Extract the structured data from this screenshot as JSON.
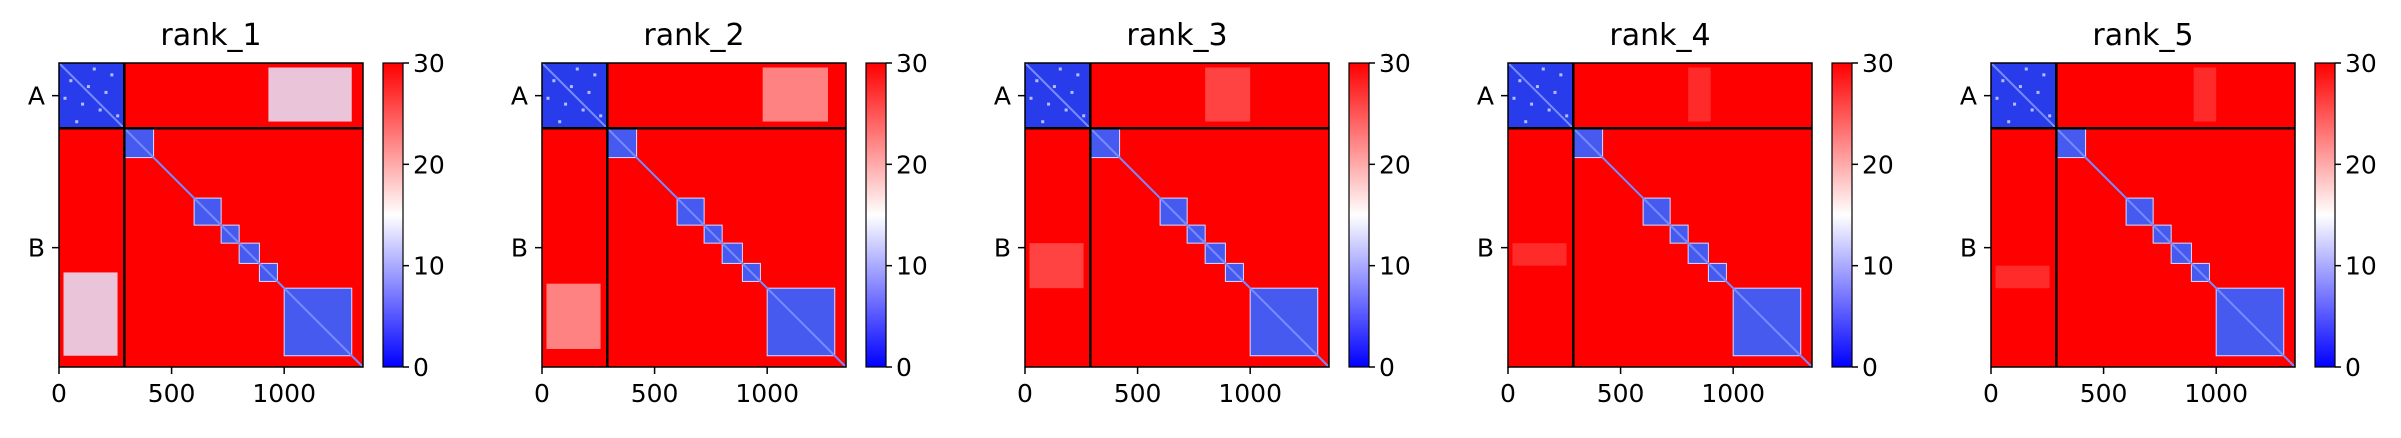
{
  "chart_data": [
    {
      "type": "heatmap",
      "title": "rank_1",
      "xticks": [
        0,
        500,
        1000
      ],
      "yticks": [
        "A",
        "B"
      ],
      "xlim": [
        0,
        1350
      ],
      "chain_break": 290,
      "colorbar": {
        "ticks": [
          0,
          10,
          20,
          30
        ],
        "range": [
          0,
          30
        ]
      },
      "ab_offdiag_blocks": [
        {
          "x": [
            930,
            1300
          ],
          "level": 0.45
        }
      ],
      "ba_offdiag_blocks": [
        {
          "y": [
            930,
            1300
          ],
          "level": 0.45
        }
      ],
      "diagonal_domains": [
        [
          290,
          420
        ],
        [
          600,
          720
        ],
        [
          720,
          800
        ],
        [
          800,
          890
        ],
        [
          890,
          970
        ],
        [
          1000,
          1300
        ]
      ]
    },
    {
      "type": "heatmap",
      "title": "rank_2",
      "xticks": [
        0,
        500,
        1000
      ],
      "yticks": [
        "A",
        "B"
      ],
      "xlim": [
        0,
        1350
      ],
      "chain_break": 290,
      "colorbar": {
        "ticks": [
          0,
          10,
          20,
          30
        ],
        "range": [
          0,
          30
        ]
      },
      "ab_offdiag_blocks": [
        {
          "x": [
            980,
            1270
          ],
          "level": 0.7
        }
      ],
      "ba_offdiag_blocks": [
        {
          "y": [
            980,
            1270
          ],
          "level": 0.7
        }
      ],
      "diagonal_domains": [
        [
          290,
          420
        ],
        [
          600,
          720
        ],
        [
          720,
          800
        ],
        [
          800,
          890
        ],
        [
          890,
          970
        ],
        [
          1000,
          1300
        ]
      ]
    },
    {
      "type": "heatmap",
      "title": "rank_3",
      "xticks": [
        0,
        500,
        1000
      ],
      "yticks": [
        "A",
        "B"
      ],
      "xlim": [
        0,
        1350
      ],
      "chain_break": 290,
      "colorbar": {
        "ticks": [
          0,
          10,
          20,
          30
        ],
        "range": [
          0,
          30
        ]
      },
      "ab_offdiag_blocks": [
        {
          "x": [
            800,
            1000
          ],
          "level": 0.85
        }
      ],
      "ba_offdiag_blocks": [
        {
          "y": [
            800,
            1000
          ],
          "level": 0.85
        }
      ],
      "diagonal_domains": [
        [
          290,
          420
        ],
        [
          600,
          720
        ],
        [
          720,
          800
        ],
        [
          800,
          890
        ],
        [
          890,
          970
        ],
        [
          1000,
          1300
        ]
      ]
    },
    {
      "type": "heatmap",
      "title": "rank_4",
      "xticks": [
        0,
        500,
        1000
      ],
      "yticks": [
        "A",
        "B"
      ],
      "xlim": [
        0,
        1350
      ],
      "chain_break": 290,
      "colorbar": {
        "ticks": [
          0,
          10,
          20,
          30
        ],
        "range": [
          0,
          30
        ]
      },
      "ab_offdiag_blocks": [
        {
          "x": [
            800,
            900
          ],
          "level": 0.9
        }
      ],
      "ba_offdiag_blocks": [
        {
          "y": [
            800,
            900
          ],
          "level": 0.9
        }
      ],
      "diagonal_domains": [
        [
          290,
          420
        ],
        [
          600,
          720
        ],
        [
          720,
          800
        ],
        [
          800,
          890
        ],
        [
          890,
          970
        ],
        [
          1000,
          1300
        ]
      ]
    },
    {
      "type": "heatmap",
      "title": "rank_5",
      "xticks": [
        0,
        500,
        1000
      ],
      "yticks": [
        "A",
        "B"
      ],
      "xlim": [
        0,
        1350
      ],
      "chain_break": 290,
      "colorbar": {
        "ticks": [
          0,
          10,
          20,
          30
        ],
        "range": [
          0,
          30
        ]
      },
      "ab_offdiag_blocks": [
        {
          "x": [
            900,
            1000
          ],
          "level": 0.9
        }
      ],
      "ba_offdiag_blocks": [
        {
          "y": [
            900,
            1000
          ],
          "level": 0.9
        }
      ],
      "diagonal_domains": [
        [
          290,
          420
        ],
        [
          600,
          720
        ],
        [
          720,
          800
        ],
        [
          800,
          890
        ],
        [
          890,
          970
        ],
        [
          1000,
          1300
        ]
      ]
    }
  ],
  "colors": {
    "low": "#0000ff",
    "mid": "#ffffff",
    "high": "#ff0000",
    "frame": "#000000"
  }
}
